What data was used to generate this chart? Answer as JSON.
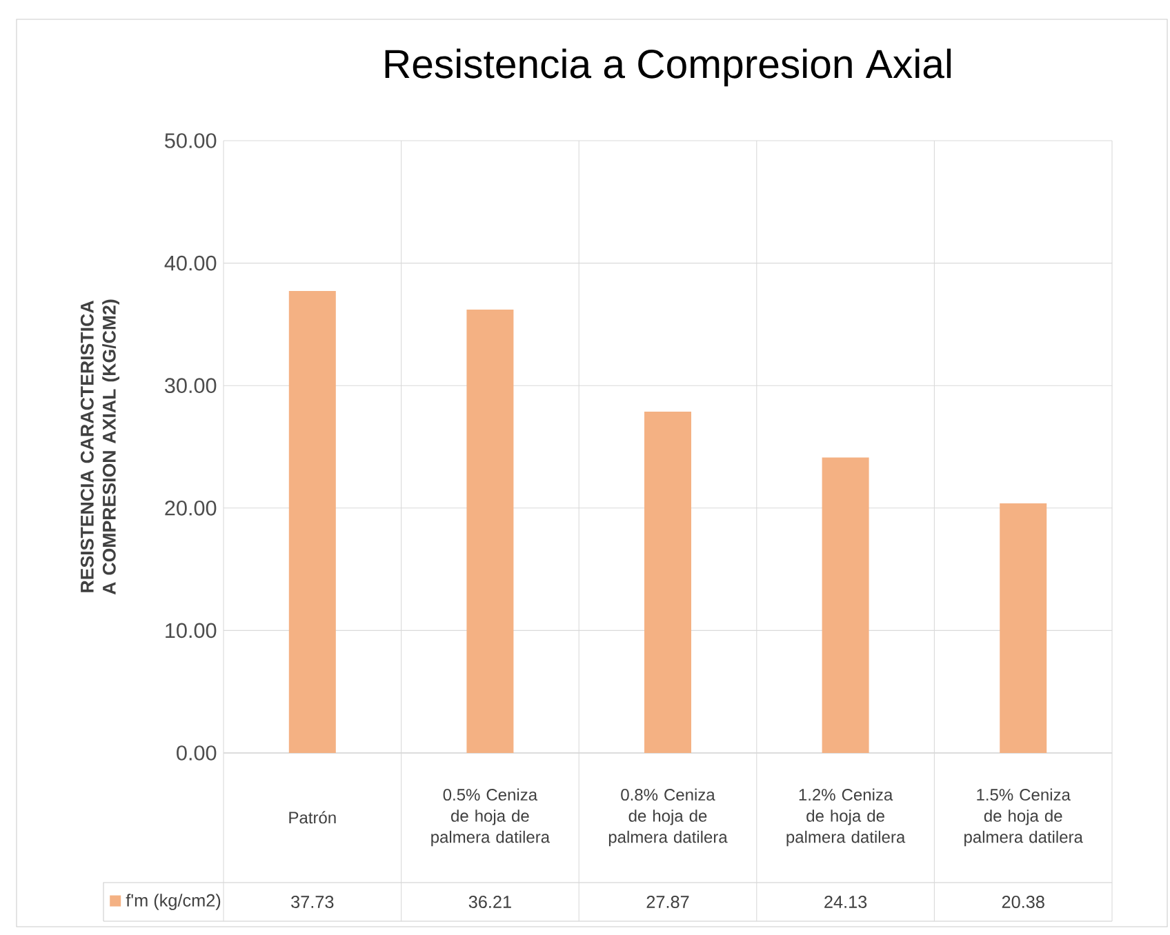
{
  "chart_data": {
    "type": "bar",
    "title": "Resistencia a Compresion Axial",
    "ylabel": "RESISTENCIA CARACTERISTICA A COMPRESION AXIAL (KG/CM2)",
    "categories": [
      "Patrón",
      "0.5% Ceniza de hoja de palmera datilera",
      "0.8% Ceniza de hoja de palmera datilera",
      "1.2% Ceniza de hoja de palmera datilera",
      "1.5% Ceniza de hoja de palmera datilera"
    ],
    "series": [
      {
        "name": "f'm (kg/cm2)",
        "color": "#f4b183",
        "values": [
          37.73,
          36.21,
          27.87,
          24.13,
          20.38
        ]
      }
    ],
    "ylim": [
      0,
      50
    ],
    "yticks": [
      {
        "value": 0,
        "label": "0.00"
      },
      {
        "value": 10,
        "label": "10.00"
      },
      {
        "value": 20,
        "label": "20.00"
      },
      {
        "value": 30,
        "label": "30.00"
      },
      {
        "value": 40,
        "label": "40.00"
      },
      {
        "value": 50,
        "label": "50.00"
      }
    ],
    "grid": "y",
    "legend": "bottom",
    "data_labels": true
  }
}
